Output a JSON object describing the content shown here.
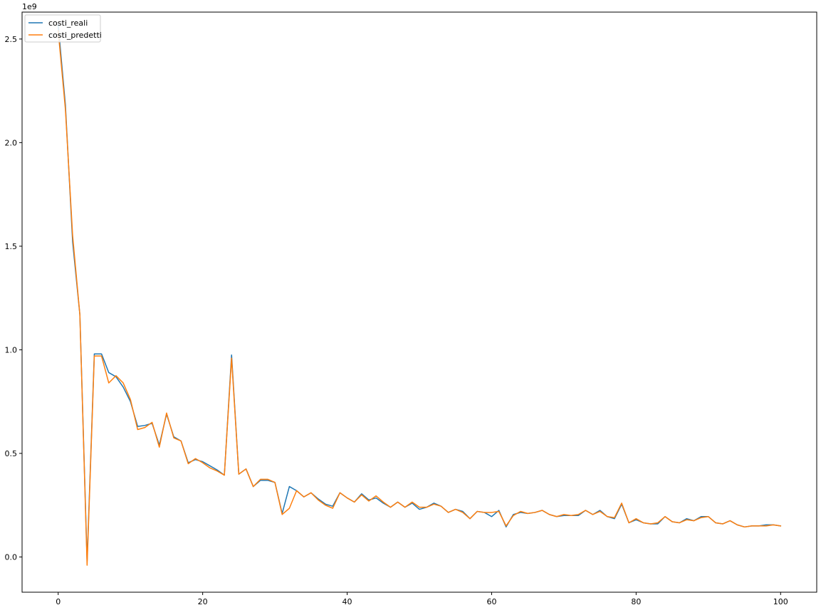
{
  "chart_data": {
    "type": "line",
    "title": "",
    "xlabel": "",
    "ylabel": "",
    "y_offset_label": "1e9",
    "xlim": [
      -5,
      105
    ],
    "ylim": [
      -0.17,
      2.63
    ],
    "x_ticks": [
      0,
      20,
      40,
      60,
      80,
      100
    ],
    "x_tick_labels": [
      "0",
      "20",
      "40",
      "60",
      "80",
      "100"
    ],
    "y_ticks": [
      0.0,
      0.5,
      1.0,
      1.5,
      2.0,
      2.5
    ],
    "y_tick_labels": [
      "0.0",
      "0.5",
      "1.0",
      "1.5",
      "2.0",
      "2.5"
    ],
    "grid": false,
    "legend_position": "upper-left",
    "x": [
      0,
      1,
      2,
      3,
      4,
      5,
      6,
      7,
      8,
      9,
      10,
      11,
      12,
      13,
      14,
      15,
      16,
      17,
      18,
      19,
      20,
      21,
      22,
      23,
      24,
      25,
      26,
      27,
      28,
      29,
      30,
      31,
      32,
      33,
      34,
      35,
      36,
      37,
      38,
      39,
      40,
      41,
      42,
      43,
      44,
      45,
      46,
      47,
      48,
      49,
      50,
      51,
      52,
      53,
      54,
      55,
      56,
      57,
      58,
      59,
      60,
      61,
      62,
      63,
      64,
      65,
      66,
      67,
      68,
      69,
      70,
      71,
      72,
      73,
      74,
      75,
      76,
      77,
      78,
      79,
      80,
      81,
      82,
      83,
      84,
      85,
      86,
      87,
      88,
      89,
      90,
      91,
      92,
      93,
      94,
      95,
      96,
      97,
      98,
      99,
      100
    ],
    "series": [
      {
        "name": "costi_reali",
        "color": "#1f77b4",
        "values": [
          2.57,
          2.18,
          1.52,
          1.17,
          -0.02,
          0.98,
          0.98,
          0.89,
          0.87,
          0.82,
          0.75,
          0.63,
          0.635,
          0.645,
          0.54,
          0.69,
          0.58,
          0.56,
          0.455,
          0.47,
          0.46,
          0.44,
          0.42,
          0.395,
          0.975,
          0.4,
          0.425,
          0.34,
          0.37,
          0.37,
          0.36,
          0.21,
          0.34,
          0.32,
          0.29,
          0.31,
          0.28,
          0.255,
          0.245,
          0.31,
          0.285,
          0.265,
          0.305,
          0.275,
          0.285,
          0.26,
          0.24,
          0.265,
          0.24,
          0.26,
          0.23,
          0.24,
          0.26,
          0.245,
          0.215,
          0.23,
          0.22,
          0.185,
          0.22,
          0.215,
          0.195,
          0.225,
          0.145,
          0.205,
          0.215,
          0.21,
          0.215,
          0.225,
          0.205,
          0.195,
          0.2,
          0.2,
          0.2,
          0.225,
          0.205,
          0.225,
          0.195,
          0.185,
          0.255,
          0.165,
          0.18,
          0.165,
          0.16,
          0.16,
          0.195,
          0.17,
          0.165,
          0.185,
          0.175,
          0.195,
          0.195,
          0.165,
          0.16,
          0.175,
          0.155,
          0.145,
          0.15,
          0.15,
          0.155,
          0.155,
          0.15
        ]
      },
      {
        "name": "costi_predetti",
        "color": "#ff7f0e",
        "values": [
          2.54,
          2.16,
          1.55,
          1.17,
          -0.04,
          0.97,
          0.97,
          0.84,
          0.875,
          0.84,
          0.76,
          0.615,
          0.625,
          0.65,
          0.53,
          0.695,
          0.575,
          0.56,
          0.45,
          0.475,
          0.455,
          0.43,
          0.415,
          0.395,
          0.96,
          0.4,
          0.425,
          0.34,
          0.375,
          0.375,
          0.36,
          0.205,
          0.235,
          0.32,
          0.29,
          0.31,
          0.275,
          0.25,
          0.235,
          0.31,
          0.285,
          0.265,
          0.3,
          0.27,
          0.295,
          0.265,
          0.24,
          0.265,
          0.24,
          0.265,
          0.24,
          0.24,
          0.255,
          0.245,
          0.215,
          0.23,
          0.215,
          0.185,
          0.22,
          0.215,
          0.215,
          0.22,
          0.15,
          0.2,
          0.22,
          0.21,
          0.215,
          0.225,
          0.205,
          0.195,
          0.205,
          0.2,
          0.205,
          0.225,
          0.205,
          0.22,
          0.195,
          0.19,
          0.26,
          0.165,
          0.185,
          0.165,
          0.16,
          0.165,
          0.195,
          0.17,
          0.165,
          0.18,
          0.175,
          0.19,
          0.195,
          0.165,
          0.16,
          0.175,
          0.155,
          0.145,
          0.15,
          0.15,
          0.15,
          0.155,
          0.15
        ]
      }
    ]
  }
}
